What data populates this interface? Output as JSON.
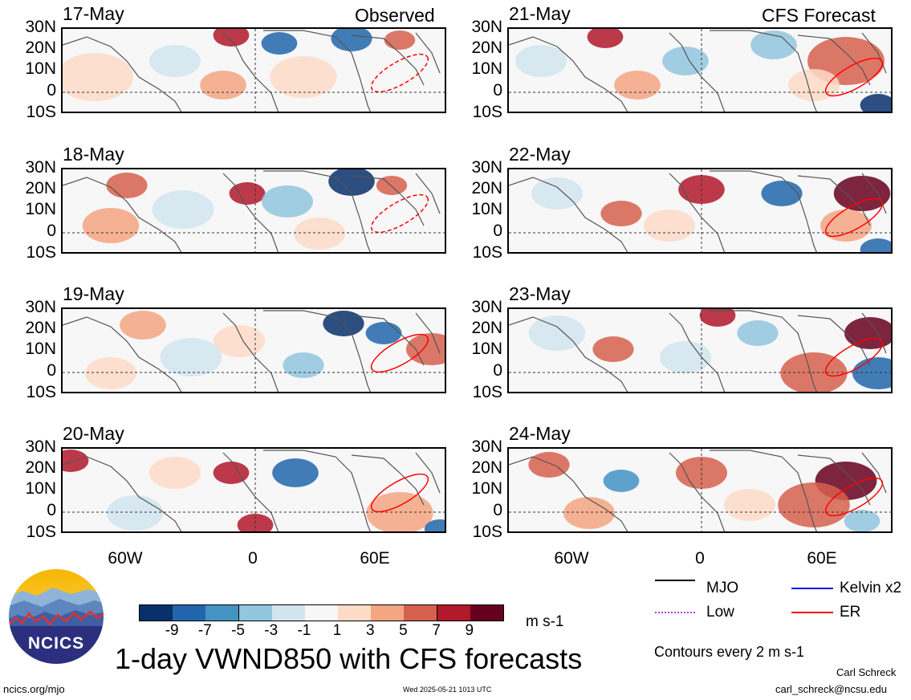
{
  "headers": {
    "observed": "Observed",
    "forecast": "CFS Forecast"
  },
  "panels": {
    "observed": [
      {
        "date": "17-May"
      },
      {
        "date": "18-May"
      },
      {
        "date": "19-May"
      },
      {
        "date": "20-May"
      }
    ],
    "forecast": [
      {
        "date": "21-May"
      },
      {
        "date": "22-May"
      },
      {
        "date": "23-May"
      },
      {
        "date": "24-May"
      }
    ]
  },
  "lat_labels": [
    "30N",
    "20N",
    "10N",
    "0",
    "10S"
  ],
  "lon_labels": [
    "60W",
    "0",
    "60E"
  ],
  "colorbar": {
    "labels": [
      "-9",
      "-7",
      "-5",
      "-3",
      "-1",
      "1",
      "3",
      "5",
      "7",
      "9"
    ],
    "colors": [
      "#08306b",
      "#2166ac",
      "#4393c3",
      "#92c5de",
      "#d1e5f0",
      "#f7f7f7",
      "#fddbc7",
      "#f4a582",
      "#d6604d",
      "#b2182b",
      "#67001f"
    ],
    "units": "m s-1"
  },
  "legend": {
    "items": [
      {
        "label": "MJO",
        "color": "#000000",
        "style": "solid"
      },
      {
        "label": "Kelvin x2",
        "color": "#0000ff",
        "style": "solid"
      },
      {
        "label": "Low",
        "color": "#b040e0",
        "style": "dotted"
      },
      {
        "label": "ER",
        "color": "#ff0000",
        "style": "solid"
      }
    ],
    "contours_note": "Contours every 2 m s-1"
  },
  "logo": {
    "text": "NCICS"
  },
  "title": "1-day VWND850 with CFS forecasts",
  "footer": {
    "url": "ncics.org/mjo",
    "timestamp": "Wed 2025-05-21 1013 UTC",
    "author": "Carl Schreck",
    "email": "carl_schreck@ncsu.edu"
  }
}
